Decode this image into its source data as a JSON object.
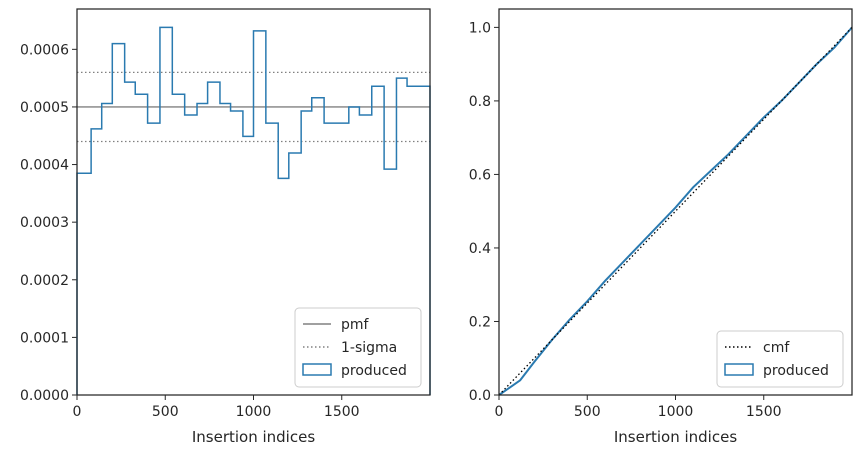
{
  "chart_data": [
    {
      "type": "step",
      "xlabel": "Insertion indices",
      "ylabel": "",
      "xlim": [
        0,
        2000
      ],
      "ylim": [
        0,
        0.00067
      ],
      "x_ticks": [
        0,
        500,
        1000,
        1500
      ],
      "x_tick_labels": [
        "0",
        "500",
        "1000",
        "1500"
      ],
      "y_ticks": [
        0,
        0.0001,
        0.0002,
        0.0003,
        0.0004,
        0.0005,
        0.0006
      ],
      "y_tick_labels": [
        "0.0000",
        "0.0001",
        "0.0002",
        "0.0003",
        "0.0004",
        "0.0005",
        "0.0006"
      ],
      "legend_position": "lower-right",
      "pmf": 0.0005,
      "sigma_band": [
        0.00044,
        0.00056
      ],
      "bin_edges": [
        0,
        80,
        140,
        200,
        270,
        330,
        400,
        470,
        540,
        610,
        680,
        740,
        810,
        870,
        940,
        1000,
        1070,
        1140,
        1200,
        1270,
        1330,
        1400,
        1470,
        1540,
        1600,
        1670,
        1740,
        1810,
        1870,
        1940,
        2000
      ],
      "values": [
        0.000385,
        0.000462,
        0.000506,
        0.00061,
        0.000543,
        0.000522,
        0.000472,
        0.000638,
        0.000522,
        0.000486,
        0.000506,
        0.000543,
        0.000506,
        0.000493,
        0.000449,
        0.000632,
        0.000472,
        0.000376,
        0.00042,
        0.000493,
        0.000516,
        0.000472,
        0.000472,
        0.0005,
        0.000486,
        0.000536,
        0.000392,
        0.00055,
        0.000536,
        0.000536
      ],
      "series": [
        {
          "name": "pmf",
          "color": "#808080",
          "style": "solid"
        },
        {
          "name": "1-sigma",
          "color": "#808080",
          "style": "dotted"
        },
        {
          "name": "produced",
          "color": "#2a7ab0",
          "style": "step"
        }
      ]
    },
    {
      "type": "line",
      "xlabel": "Insertion indices",
      "ylabel": "",
      "xlim": [
        0,
        2000
      ],
      "ylim": [
        0,
        1.05
      ],
      "x_ticks": [
        0,
        500,
        1000,
        1500
      ],
      "x_tick_labels": [
        "0",
        "500",
        "1000",
        "1500"
      ],
      "y_ticks": [
        0,
        0.2,
        0.4,
        0.6,
        0.8,
        1.0
      ],
      "y_tick_labels": [
        "0.0",
        "0.2",
        "0.4",
        "0.6",
        "0.8",
        "1.0"
      ],
      "legend_position": "lower-right",
      "series": [
        {
          "name": "cmf",
          "color": "#000000",
          "style": "dotted",
          "x": [
            0,
            2000
          ],
          "y": [
            0,
            1.0
          ]
        },
        {
          "name": "produced",
          "color": "#2a7ab0",
          "style": "solid",
          "x": [
            0,
            60,
            120,
            200,
            300,
            400,
            500,
            600,
            700,
            800,
            900,
            1000,
            1100,
            1200,
            1300,
            1400,
            1500,
            1600,
            1700,
            1800,
            1900,
            2000
          ],
          "y": [
            0,
            0.02,
            0.04,
            0.09,
            0.15,
            0.205,
            0.255,
            0.31,
            0.36,
            0.41,
            0.46,
            0.51,
            0.565,
            0.61,
            0.655,
            0.705,
            0.755,
            0.8,
            0.85,
            0.9,
            0.945,
            1.0
          ]
        }
      ]
    }
  ]
}
